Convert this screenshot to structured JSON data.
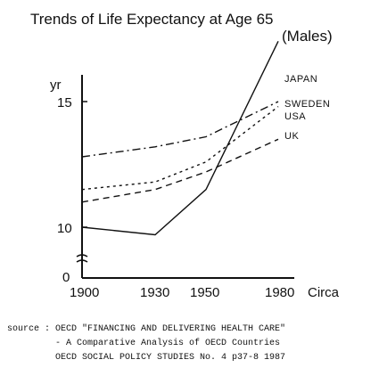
{
  "chart_data": {
    "type": "line",
    "title": "Trends of Life Expectancy at Age 65",
    "subtitle": "(Males)",
    "ylabel": "yr",
    "xlabel": "Circa",
    "x": [
      1900,
      1930,
      1950,
      1980
    ],
    "x_tick_labels": [
      "1900",
      "1930",
      "1950",
      "1980"
    ],
    "y_tick_labels": [
      "15",
      "10",
      "0"
    ],
    "ylim": [
      10,
      15
    ],
    "series": [
      {
        "name": "JAPAN",
        "style": "solid",
        "values": [
          10.0,
          9.7,
          11.5,
          17.4
        ]
      },
      {
        "name": "SWEDEN",
        "style": "dash-dot",
        "values": [
          12.8,
          13.2,
          13.6,
          15.0
        ]
      },
      {
        "name": "USA",
        "style": "dotted",
        "values": [
          11.5,
          11.8,
          12.6,
          14.8
        ]
      },
      {
        "name": "UK",
        "style": "dashed",
        "values": [
          11.0,
          11.5,
          12.2,
          13.5
        ]
      }
    ],
    "source": [
      "source : OECD \"FINANCING AND DELIVERING HEALTH CARE\"",
      "- A Comparative Analysis of OECD Countries",
      "OECD SOCIAL POLICY STUDIES No. 4 p37-8 1987"
    ]
  }
}
